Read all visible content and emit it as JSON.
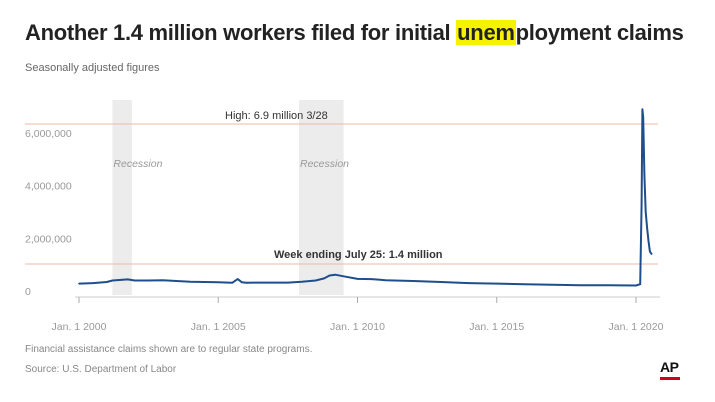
{
  "header": {
    "title_before": "Another 1.4 million workers filed for initial ",
    "title_highlight": "unem",
    "title_after": "ployment claims",
    "subtitle": "Seasonally adjusted figures"
  },
  "footer": {
    "note": "Financial assistance claims shown are to regular state programs.",
    "source": "Source: U.S. Department of Labor",
    "logo": "AP"
  },
  "colors": {
    "line": "#1f4e8c",
    "reference_line": "#f0b8a8",
    "recession_band": "#ececec",
    "highlight": "#f6f200",
    "logo_bar": "#d0021b"
  },
  "chart_data": {
    "type": "line",
    "x_type": "date",
    "y_ticks": [
      0,
      2000000,
      4000000,
      6000000
    ],
    "y_tick_labels": [
      "0",
      "2,000,000",
      "4,000,000",
      "6,000,000"
    ],
    "x_ticks": [
      2000,
      2005,
      2010,
      2015,
      2020
    ],
    "x_tick_labels": [
      "Jan. 1 2000",
      "Jan. 1 2005",
      "Jan. 1 2010",
      "Jan. 1 2015",
      "Jan. 1 2020"
    ],
    "xlim": [
      1999.5,
      2020.7
    ],
    "ylim": [
      0,
      7000000
    ],
    "recessions": [
      {
        "label": "Recession",
        "start": 2001.2,
        "end": 2001.9
      },
      {
        "label": "Recession",
        "start": 2007.9,
        "end": 2009.5
      }
    ],
    "annotations": [
      {
        "text": "High: 6.9 million 3/28",
        "x": 2020.24,
        "y": 6900000
      },
      {
        "text": "Week ending July 25: 1.4 million",
        "x": 2020.56,
        "y": 1400000
      }
    ],
    "series": [
      {
        "x": [
          2000.0,
          2000.5,
          2001.0,
          2001.2,
          2001.5,
          2001.75,
          2002.0,
          2002.5,
          2003.0,
          2003.5,
          2004.0,
          2004.5,
          2005.0,
          2005.5,
          2005.7,
          2005.85,
          2006.0,
          2006.5,
          2007.0,
          2007.5,
          2008.0,
          2008.5,
          2008.8,
          2009.0,
          2009.2,
          2009.5,
          2010.0,
          2010.5,
          2011.0,
          2012.0,
          2013.0,
          2014.0,
          2015.0,
          2016.0,
          2017.0,
          2018.0,
          2019.0,
          2020.0,
          2020.15,
          2020.2,
          2020.23,
          2020.26,
          2020.3,
          2020.35,
          2020.4,
          2020.45,
          2020.5,
          2020.56
        ],
        "y": [
          280000,
          300000,
          340000,
          400000,
          420000,
          440000,
          400000,
          400000,
          410000,
          380000,
          350000,
          340000,
          330000,
          310000,
          450000,
          330000,
          310000,
          320000,
          320000,
          320000,
          350000,
          400000,
          480000,
          590000,
          620000,
          560000,
          460000,
          450000,
          410000,
          380000,
          340000,
          300000,
          280000,
          260000,
          240000,
          220000,
          220000,
          210000,
          260000,
          3300000,
          6900000,
          6600000,
          4400000,
          3000000,
          2400000,
          1900000,
          1500000,
          1400000
        ]
      }
    ]
  }
}
